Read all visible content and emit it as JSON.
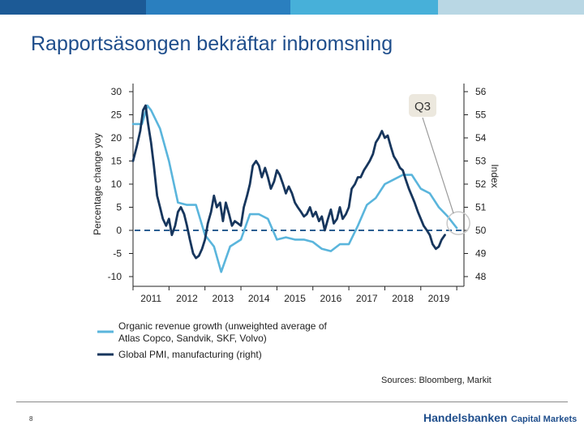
{
  "page": {
    "title": "Rapportsäsongen bekräftar inbromsning",
    "page_number": "8",
    "sources": "Sources: Bloomberg, Markit",
    "brand_main": "Handelsbanken",
    "brand_sub": "Capital Markets",
    "topbar_colors": [
      "#1c5a96",
      "#2a7fbf",
      "#47b0d9",
      "#b9d7e4"
    ]
  },
  "chart_data": {
    "type": "line",
    "title": "",
    "xlabel": "",
    "ylabel_left": "Percentage change yoy",
    "ylabel_right": "Index",
    "ylim_left": [
      -10,
      30
    ],
    "ylim_right": [
      48,
      56
    ],
    "x_range": [
      2010.5,
      2019.7
    ],
    "left_ticks": [
      "30",
      "25",
      "20",
      "15",
      "10",
      "5",
      "0",
      "-5",
      "-10"
    ],
    "right_ticks": [
      "56",
      "55",
      "54",
      "53",
      "52",
      "51",
      "50",
      "49",
      "48"
    ],
    "x_ticks": [
      "2011",
      "2012",
      "2013",
      "2014",
      "2015",
      "2016",
      "2017",
      "2018",
      "2019"
    ],
    "reference_line": {
      "axis": "left",
      "value": 0,
      "style": "dashed",
      "color": "#2b5f92"
    },
    "annotation": {
      "label": "Q3",
      "target_x": 2019.5,
      "target_y_left": 0.5
    },
    "series": [
      {
        "name": "Organic revenue growth (unweighted average of Atlas Copco, Sandvik, SKF, Volvo)",
        "legend_line1": "Organic revenue growth (unweighted average of",
        "legend_line2": "Atlas Copco, Sandvik, SKF, Volvo)",
        "axis": "left",
        "color": "#5ab5dc",
        "points": [
          [
            2010.5,
            23
          ],
          [
            2010.75,
            23
          ],
          [
            2010.9,
            27
          ],
          [
            2011.0,
            26
          ],
          [
            2011.25,
            22
          ],
          [
            2011.5,
            15
          ],
          [
            2011.75,
            6
          ],
          [
            2012.0,
            5.5
          ],
          [
            2012.25,
            5.5
          ],
          [
            2012.5,
            -1
          ],
          [
            2012.75,
            -3.5
          ],
          [
            2012.95,
            -9
          ],
          [
            2013.2,
            -3.5
          ],
          [
            2013.5,
            -2
          ],
          [
            2013.75,
            3.5
          ],
          [
            2014.0,
            3.5
          ],
          [
            2014.25,
            2.5
          ],
          [
            2014.5,
            -2
          ],
          [
            2014.75,
            -1.5
          ],
          [
            2015.0,
            -2
          ],
          [
            2015.25,
            -2
          ],
          [
            2015.5,
            -2.5
          ],
          [
            2015.75,
            -4
          ],
          [
            2016.0,
            -4.5
          ],
          [
            2016.25,
            -3
          ],
          [
            2016.5,
            -3
          ],
          [
            2016.75,
            1
          ],
          [
            2017.0,
            5.5
          ],
          [
            2017.25,
            7
          ],
          [
            2017.5,
            10
          ],
          [
            2017.75,
            11
          ],
          [
            2018.0,
            12
          ],
          [
            2018.25,
            12
          ],
          [
            2018.5,
            9
          ],
          [
            2018.75,
            8
          ],
          [
            2019.0,
            5
          ],
          [
            2019.25,
            3
          ],
          [
            2019.5,
            0.5
          ]
        ]
      },
      {
        "name": "Global PMI, manufacturing (right)",
        "legend_line1": "Global PMI, manufacturing (right)",
        "axis": "right",
        "color": "#17365d",
        "points": [
          [
            2010.5,
            53
          ],
          [
            2010.6,
            53.6
          ],
          [
            2010.7,
            54.3
          ],
          [
            2010.78,
            55.2
          ],
          [
            2010.85,
            55.4
          ],
          [
            2010.92,
            54.6
          ],
          [
            2011.0,
            53.8
          ],
          [
            2011.08,
            52.8
          ],
          [
            2011.17,
            51.5
          ],
          [
            2011.25,
            51.0
          ],
          [
            2011.33,
            50.5
          ],
          [
            2011.42,
            50.2
          ],
          [
            2011.5,
            50.5
          ],
          [
            2011.58,
            49.8
          ],
          [
            2011.67,
            50.2
          ],
          [
            2011.75,
            50.8
          ],
          [
            2011.83,
            51.0
          ],
          [
            2011.92,
            50.7
          ],
          [
            2012.0,
            50.2
          ],
          [
            2012.08,
            49.6
          ],
          [
            2012.17,
            49.0
          ],
          [
            2012.25,
            48.8
          ],
          [
            2012.33,
            48.9
          ],
          [
            2012.42,
            49.2
          ],
          [
            2012.5,
            49.6
          ],
          [
            2012.58,
            50.3
          ],
          [
            2012.67,
            50.8
          ],
          [
            2012.75,
            51.5
          ],
          [
            2012.83,
            51.0
          ],
          [
            2012.92,
            51.2
          ],
          [
            2013.0,
            50.4
          ],
          [
            2013.08,
            51.2
          ],
          [
            2013.17,
            50.7
          ],
          [
            2013.25,
            50.2
          ],
          [
            2013.33,
            50.4
          ],
          [
            2013.42,
            50.3
          ],
          [
            2013.5,
            50.2
          ],
          [
            2013.58,
            51.0
          ],
          [
            2013.67,
            51.5
          ],
          [
            2013.75,
            52.0
          ],
          [
            2013.83,
            52.8
          ],
          [
            2013.92,
            53.0
          ],
          [
            2014.0,
            52.8
          ],
          [
            2014.08,
            52.3
          ],
          [
            2014.17,
            52.7
          ],
          [
            2014.25,
            52.3
          ],
          [
            2014.33,
            51.8
          ],
          [
            2014.42,
            52.1
          ],
          [
            2014.5,
            52.6
          ],
          [
            2014.58,
            52.4
          ],
          [
            2014.67,
            52.0
          ],
          [
            2014.75,
            51.6
          ],
          [
            2014.83,
            51.9
          ],
          [
            2014.92,
            51.6
          ],
          [
            2015.0,
            51.2
          ],
          [
            2015.08,
            51.0
          ],
          [
            2015.17,
            50.8
          ],
          [
            2015.25,
            50.6
          ],
          [
            2015.33,
            50.7
          ],
          [
            2015.42,
            51.0
          ],
          [
            2015.5,
            50.6
          ],
          [
            2015.58,
            50.8
          ],
          [
            2015.67,
            50.4
          ],
          [
            2015.75,
            50.6
          ],
          [
            2015.83,
            50.0
          ],
          [
            2015.92,
            50.5
          ],
          [
            2016.0,
            50.9
          ],
          [
            2016.08,
            50.3
          ],
          [
            2016.17,
            50.5
          ],
          [
            2016.25,
            51.0
          ],
          [
            2016.33,
            50.5
          ],
          [
            2016.42,
            50.7
          ],
          [
            2016.5,
            51.0
          ],
          [
            2016.58,
            51.8
          ],
          [
            2016.67,
            52.0
          ],
          [
            2016.75,
            52.3
          ],
          [
            2016.83,
            52.3
          ],
          [
            2016.92,
            52.6
          ],
          [
            2017.0,
            52.8
          ],
          [
            2017.08,
            53.0
          ],
          [
            2017.17,
            53.3
          ],
          [
            2017.25,
            53.8
          ],
          [
            2017.33,
            54.0
          ],
          [
            2017.42,
            54.3
          ],
          [
            2017.5,
            54.0
          ],
          [
            2017.58,
            54.1
          ],
          [
            2017.67,
            53.6
          ],
          [
            2017.75,
            53.2
          ],
          [
            2017.83,
            53.0
          ],
          [
            2017.92,
            52.7
          ],
          [
            2018.0,
            52.6
          ],
          [
            2018.08,
            52.2
          ],
          [
            2018.17,
            51.8
          ],
          [
            2018.25,
            51.5
          ],
          [
            2018.33,
            51.2
          ],
          [
            2018.42,
            50.8
          ],
          [
            2018.5,
            50.5
          ],
          [
            2018.58,
            50.2
          ],
          [
            2018.67,
            50.0
          ],
          [
            2018.75,
            49.8
          ],
          [
            2018.83,
            49.4
          ],
          [
            2018.92,
            49.2
          ],
          [
            2019.0,
            49.3
          ],
          [
            2019.08,
            49.6
          ],
          [
            2019.17,
            49.8
          ]
        ]
      }
    ]
  }
}
